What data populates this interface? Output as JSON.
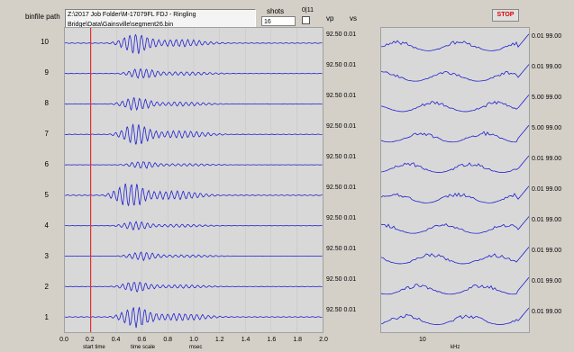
{
  "header": {
    "path_label": "binfile path",
    "path_value": "Z:\\2017 Job Folder\\M-17079FL FDJ - Ringling Bridge\\Data\\Gainsville\\segment26.bin",
    "shots_label": "shots",
    "shots_value": "16",
    "shot_counter": "0|11",
    "vp_label": "vp",
    "vs_label": "vs",
    "stop_label": "STOP"
  },
  "traces": [
    {
      "label": "10",
      "vpvs": "92.50 0.01",
      "freq": "0.01 99.00"
    },
    {
      "label": "9",
      "vpvs": "92.50 0.01",
      "freq": "0.01 99.00"
    },
    {
      "label": "8",
      "vpvs": "92.50 0.01",
      "freq": "5.00 99.00"
    },
    {
      "label": "7",
      "vpvs": "92.50 0.01",
      "freq": "5.00 99.00"
    },
    {
      "label": "6",
      "vpvs": "92.50 0.01",
      "freq": "0.01 99.00"
    },
    {
      "label": "5",
      "vpvs": "92.50 0.01",
      "freq": "0.01 99.00"
    },
    {
      "label": "4",
      "vpvs": "92.50 0.01",
      "freq": "0.01 99.00"
    },
    {
      "label": "3",
      "vpvs": "92.50 0.01",
      "freq": "0.01 99.00"
    },
    {
      "label": "2",
      "vpvs": "92.50 0.01",
      "freq": "0.01 99.00"
    },
    {
      "label": "1",
      "vpvs": "92.50 0.01",
      "freq": "0.01 99.00"
    }
  ],
  "x_axis": {
    "ticks": [
      "0.0",
      "0.2",
      "0.4",
      "0.6",
      "0.8",
      "1.0",
      "1.2",
      "1.4",
      "1.6",
      "1.8",
      "2.0"
    ],
    "unit_label": "msec",
    "start_time_label": "start time",
    "time_scale_label": "time scale"
  },
  "freq_axis": {
    "tick": "10",
    "unit_label": "kHz"
  },
  "chart_data": [
    {
      "type": "line",
      "description_key": "waveform traces",
      "x_range": [
        0.0,
        2.0
      ],
      "marker_x": 0.2,
      "series": [
        {
          "name": "10",
          "burst_center": 0.55,
          "burst_amp": 1.0
        },
        {
          "name": "9",
          "burst_center": 0.6,
          "burst_amp": 0.5
        },
        {
          "name": "8",
          "burst_center": 0.55,
          "burst_amp": 0.6
        },
        {
          "name": "7",
          "burst_center": 0.55,
          "burst_amp": 1.0
        },
        {
          "name": "6",
          "burst_center": 0.6,
          "burst_amp": 0.35
        },
        {
          "name": "5",
          "burst_center": 0.5,
          "burst_amp": 1.2
        },
        {
          "name": "4",
          "burst_center": 0.55,
          "burst_amp": 0.4
        },
        {
          "name": "3",
          "burst_center": 0.6,
          "burst_amp": 0.4
        },
        {
          "name": "2",
          "burst_center": 0.55,
          "burst_amp": 0.5
        },
        {
          "name": "1",
          "burst_center": 0.55,
          "burst_amp": 1.0
        }
      ]
    },
    {
      "type": "line",
      "description_key": "spectra",
      "series_count": 10
    }
  ],
  "colors": {
    "trace": "#2020d0",
    "marker": "#e03030",
    "stop": "#e00000"
  }
}
